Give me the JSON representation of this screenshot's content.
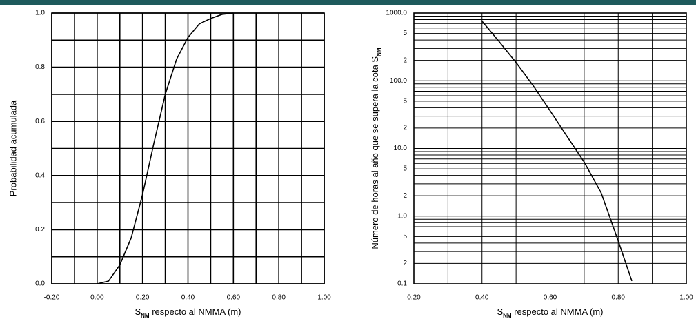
{
  "chart_data": [
    {
      "type": "line",
      "ylabel": "Probabilidad acumulada",
      "xlabel": {
        "symbol": "S",
        "subscript": "NM",
        "text": " respecto al NMMA (m)"
      },
      "xlim": [
        -0.2,
        1.0
      ],
      "xticks": [
        {
          "value": -0.2,
          "label": "-0.20"
        },
        {
          "value": 0,
          "label": "0.00"
        },
        {
          "value": 0.2,
          "label": "0.20"
        },
        {
          "value": 0.4,
          "label": "0.40"
        },
        {
          "value": 0.6,
          "label": "0.60"
        },
        {
          "value": 0.8,
          "label": "0.80"
        },
        {
          "value": 1.0,
          "label": "1.00"
        }
      ],
      "xgrid_minor": [
        -0.1,
        0.1,
        0.3,
        0.5,
        0.7,
        0.9
      ],
      "ylim": [
        0,
        1.0
      ],
      "yticks": [
        {
          "value": 0,
          "label": "0.0"
        },
        0.2,
        0.4,
        0.6,
        0.8,
        {
          "value": 1.0,
          "label": "1.0"
        }
      ],
      "ygrid_minor": [
        0.1,
        0.3,
        0.5,
        0.7,
        0.9
      ],
      "log_y": false,
      "grid": true,
      "series": [
        {
          "color": "#000000",
          "x": [
            0.0,
            0.05,
            0.1,
            0.15,
            0.2,
            0.25,
            0.3,
            0.35,
            0.4,
            0.45,
            0.5,
            0.55,
            0.6
          ],
          "values": [
            0.0,
            0.01,
            0.07,
            0.17,
            0.33,
            0.52,
            0.7,
            0.83,
            0.91,
            0.96,
            0.98,
            0.995,
            1.0
          ]
        }
      ]
    },
    {
      "type": "line",
      "ylabel": {
        "text": "Número de horas al año que se supera la cota ",
        "symbol": "S",
        "subscript": "NM"
      },
      "xlabel": {
        "symbol": "S",
        "subscript": "NM",
        "text": " respecto al NMMA (m)"
      },
      "xlim": [
        0.2,
        1.0
      ],
      "xticks": [
        {
          "value": 0.2,
          "label": "0.20"
        },
        {
          "value": 0.4,
          "label": "0.40"
        },
        {
          "value": 0.6,
          "label": "0.60"
        },
        {
          "value": 0.8,
          "label": "0.80"
        },
        {
          "value": 1.0,
          "label": "1.00"
        }
      ],
      "xgrid_minor": [
        0.3,
        0.5,
        0.7,
        0.9
      ],
      "ylim": [
        0.1,
        1000
      ],
      "yticks": [
        0.1,
        {
          "value": 0.2,
          "label": "2"
        },
        {
          "value": 0.5,
          "label": "5"
        },
        {
          "value": 1,
          "label": "1.0"
        },
        {
          "value": 2,
          "label": "2"
        },
        {
          "value": 5,
          "label": "5"
        },
        {
          "value": 10,
          "label": "10.0"
        },
        {
          "value": 20,
          "label": "2"
        },
        {
          "value": 50,
          "label": "5"
        },
        {
          "value": 100,
          "label": "100.0"
        },
        {
          "value": 200,
          "label": "2"
        },
        {
          "value": 500,
          "label": "5"
        },
        {
          "value": 1000,
          "label": "1000.0"
        }
      ],
      "ygrid_minor": [
        0.3,
        0.4,
        0.6,
        0.7,
        0.8,
        0.9,
        3,
        4,
        6,
        7,
        8,
        9,
        30,
        40,
        60,
        70,
        80,
        90,
        300,
        400,
        600,
        700,
        800,
        900
      ],
      "log_y": true,
      "grid": true,
      "series": [
        {
          "color": "#000000",
          "x": [
            0.4,
            0.45,
            0.5,
            0.55,
            0.6,
            0.65,
            0.7,
            0.75,
            0.8,
            0.84
          ],
          "values": [
            760,
            380,
            186,
            85,
            36,
            15,
            6.3,
            2.2,
            0.43,
            0.11
          ]
        }
      ]
    }
  ]
}
